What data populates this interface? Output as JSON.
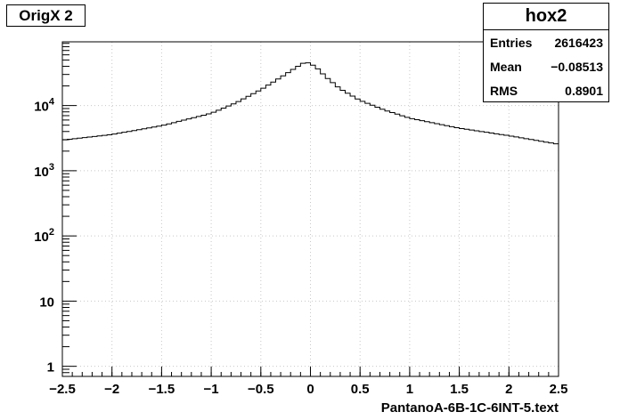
{
  "title_box": {
    "label": "OrigX 2"
  },
  "stats": {
    "name": "hox2",
    "rows": [
      {
        "label": "Entries",
        "value": "2616423"
      },
      {
        "label": "Mean",
        "value": "−0.08513"
      },
      {
        "label": "RMS",
        "value": "0.8901"
      }
    ]
  },
  "chart_data": {
    "type": "histogram",
    "xlabel": "PantanoA-6B-1C-6INT-5.text",
    "xlim": [
      -2.5,
      2.5
    ],
    "ylim": [
      0.7,
      95000
    ],
    "yscale": "log",
    "grid": true,
    "x_ticks": [
      {
        "v": -2.5,
        "label": "−2.5"
      },
      {
        "v": -2,
        "label": "−2"
      },
      {
        "v": -1.5,
        "label": "−1.5"
      },
      {
        "v": -1,
        "label": "−1"
      },
      {
        "v": -0.5,
        "label": "−0.5"
      },
      {
        "v": 0,
        "label": "0"
      },
      {
        "v": 0.5,
        "label": "0.5"
      },
      {
        "v": 1,
        "label": "1"
      },
      {
        "v": 1.5,
        "label": "1.5"
      },
      {
        "v": 2,
        "label": "2"
      },
      {
        "v": 2.5,
        "label": "2.5"
      }
    ],
    "y_ticks": [
      {
        "v": 1,
        "base": "1",
        "exp": ""
      },
      {
        "v": 10,
        "base": "10",
        "exp": ""
      },
      {
        "v": 100,
        "base": "10",
        "exp": "2"
      },
      {
        "v": 1000,
        "base": "10",
        "exp": "3"
      },
      {
        "v": 10000,
        "base": "10",
        "exp": "4"
      }
    ],
    "curve": [
      {
        "x": -2.5,
        "y": 2950
      },
      {
        "x": -2.0,
        "y": 3600
      },
      {
        "x": -1.5,
        "y": 4900
      },
      {
        "x": -1.0,
        "y": 7600
      },
      {
        "x": -0.75,
        "y": 11000
      },
      {
        "x": -0.5,
        "y": 17500
      },
      {
        "x": -0.3,
        "y": 27000
      },
      {
        "x": -0.15,
        "y": 38000
      },
      {
        "x": -0.05,
        "y": 47000
      },
      {
        "x": 0.05,
        "y": 40000
      },
      {
        "x": 0.15,
        "y": 28000
      },
      {
        "x": 0.3,
        "y": 18000
      },
      {
        "x": 0.5,
        "y": 12000
      },
      {
        "x": 0.75,
        "y": 8500
      },
      {
        "x": 1.0,
        "y": 6400
      },
      {
        "x": 1.5,
        "y": 4500
      },
      {
        "x": 2.0,
        "y": 3450
      },
      {
        "x": 2.5,
        "y": 2550
      }
    ]
  }
}
